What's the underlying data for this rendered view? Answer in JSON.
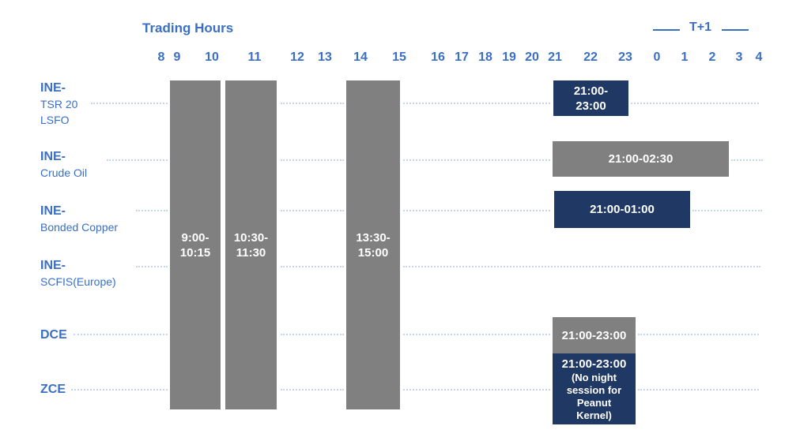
{
  "header": {
    "title": "Trading Hours",
    "next_day_label": "T+1"
  },
  "hour_ticks": [
    "8",
    "9",
    "10",
    "11",
    "12",
    "13",
    "14",
    "15",
    "16",
    "17",
    "18",
    "19",
    "20",
    "21",
    "22",
    "23",
    "0",
    "1",
    "2",
    "3",
    "4"
  ],
  "rows": [
    {
      "code": "INE-",
      "name": "TSR 20\nLSFO"
    },
    {
      "code": "INE-",
      "name": "Crude Oil"
    },
    {
      "code": "INE-",
      "name": "Bonded Copper"
    },
    {
      "code": "INE-",
      "name": "SCFIS(Europe)"
    },
    {
      "code": "DCE",
      "name": ""
    },
    {
      "code": "ZCE",
      "name": ""
    }
  ],
  "day_sessions": [
    "9:00-\n10:15",
    "10:30-\n11:30",
    "13:30-\n15:00"
  ],
  "night_sessions": [
    {
      "label": "21:00-\n23:00",
      "color": "#1f3864"
    },
    {
      "label": "21:00-02:30",
      "color": "#808080"
    },
    {
      "label": "21:00-01:00",
      "color": "#1f3864"
    },
    {
      "label": "21:00-23:00",
      "color": "#808080"
    },
    {
      "label": "21:00-23:00",
      "note": "(No night\nsession for\nPeanut\nKernel)",
      "color": "#1f3864"
    }
  ],
  "colors": {
    "accent": "#3a6fc4",
    "day_session": "#808080",
    "night_navy": "#1f3864",
    "night_grey": "#808080",
    "dotted_line": "#c5d6ee"
  }
}
